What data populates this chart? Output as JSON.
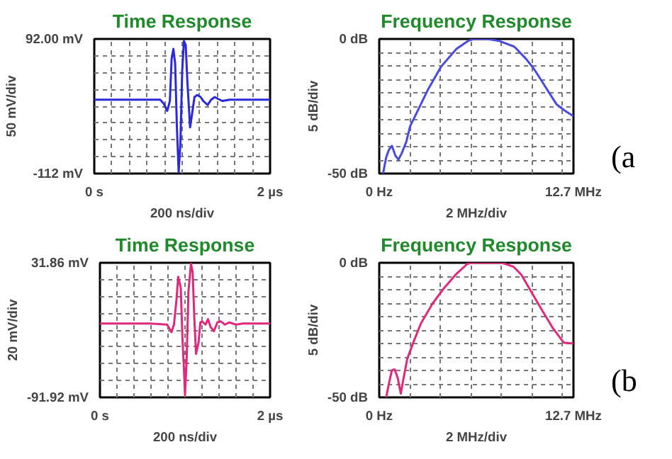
{
  "chart_data": [
    {
      "type": "line",
      "title": "Time Response",
      "xlabel": "200 ns/div",
      "ylabel": "50 mV/div",
      "xlim": [
        0,
        2
      ],
      "ylim": [
        -112,
        92
      ],
      "xticks": [
        {
          "value": 0,
          "label": "0 s"
        },
        {
          "value": 0.2,
          "label": null
        },
        {
          "value": 0.4,
          "label": null
        },
        {
          "value": 0.6,
          "label": null
        },
        {
          "value": 0.8,
          "label": null
        },
        {
          "value": 1.0,
          "label": null
        },
        {
          "value": 1.2,
          "label": null
        },
        {
          "value": 1.4,
          "label": null
        },
        {
          "value": 1.6,
          "label": null
        },
        {
          "value": 1.8,
          "label": null
        },
        {
          "value": 2,
          "label": "2 µs"
        }
      ],
      "yticks": [
        {
          "value": -112,
          "label": "-112 mV"
        },
        {
          "value": -86.5,
          "label": null
        },
        {
          "value": -61,
          "label": null
        },
        {
          "value": -35.5,
          "label": null
        },
        {
          "value": -10,
          "label": null
        },
        {
          "value": 15.5,
          "label": null
        },
        {
          "value": 41,
          "label": null
        },
        {
          "value": 66.5,
          "label": null
        },
        {
          "value": 92,
          "label": "92.00 mV"
        }
      ],
      "grid": true,
      "x": [
        0,
        0.61,
        0.75,
        0.79,
        0.83,
        0.86,
        0.88,
        0.9,
        0.92,
        0.94,
        0.96,
        0.98,
        1.0,
        1.02,
        1.04,
        1.06,
        1.09,
        1.11,
        1.14,
        1.17,
        1.21,
        1.24,
        1.29,
        1.33,
        1.37,
        1.41,
        1.46,
        1.54,
        2
      ],
      "series": [
        {
          "color": "#2a2ad8",
          "values": [
            0,
            0,
            0,
            -6,
            -17,
            -2,
            62,
            77,
            55,
            -42,
            -110,
            -66,
            43,
            89,
            83,
            25,
            -42,
            -24,
            4,
            7,
            4,
            -2,
            -8,
            0,
            4,
            1,
            -2,
            0,
            0
          ]
        }
      ]
    },
    {
      "type": "line",
      "title": "Frequency Response",
      "xlabel": "2 MHz/div",
      "ylabel": "5 dB/div",
      "xlim": [
        0,
        12.7
      ],
      "ylim": [
        -50,
        0
      ],
      "xticks": [
        {
          "value": 0,
          "label": "0 Hz"
        },
        {
          "value": 2,
          "label": null
        },
        {
          "value": 4,
          "label": null
        },
        {
          "value": 6,
          "label": null
        },
        {
          "value": 8,
          "label": null
        },
        {
          "value": 10,
          "label": null
        },
        {
          "value": 12,
          "label": null
        },
        {
          "value": 12.7,
          "label": "12.7 MHz"
        }
      ],
      "yticks": [
        {
          "value": -50,
          "label": "-50 dB"
        },
        {
          "value": -45,
          "label": null
        },
        {
          "value": -40,
          "label": null
        },
        {
          "value": -35,
          "label": null
        },
        {
          "value": -30,
          "label": null
        },
        {
          "value": -25,
          "label": null
        },
        {
          "value": -20,
          "label": null
        },
        {
          "value": -15,
          "label": null
        },
        {
          "value": -10,
          "label": null
        },
        {
          "value": -5,
          "label": null
        },
        {
          "value": 0,
          "label": "0 dB"
        }
      ],
      "grid": true,
      "annotations": [
        "(a"
      ],
      "x": [
        0.25,
        0.45,
        0.63,
        0.83,
        1.06,
        1.26,
        1.46,
        1.77,
        2.02,
        2.53,
        3.16,
        4.04,
        5.05,
        5.81,
        6.19,
        7.07,
        7.83,
        8.84,
        9.6,
        10.1,
        10.6,
        11.1,
        11.6,
        12.1,
        12.7
      ],
      "series": [
        {
          "color": "#4a4ae0",
          "values": [
            -50,
            -44.1,
            -41.2,
            -39.7,
            -43.4,
            -44.8,
            -42.6,
            -38.2,
            -32.4,
            -26.5,
            -19.1,
            -10.3,
            -3.7,
            -0.7,
            0,
            0,
            -0.7,
            -2.9,
            -7.4,
            -11,
            -15.4,
            -19.9,
            -24.3,
            -26.5,
            -28.7
          ]
        }
      ]
    },
    {
      "type": "line",
      "title": "Time Response",
      "xlabel": "200 ns/div",
      "ylabel": "20 mV/div",
      "xlim": [
        0,
        2
      ],
      "ylim": [
        -91.92,
        31.86
      ],
      "xticks": [
        {
          "value": 0,
          "label": "0 s"
        },
        {
          "value": 0.2,
          "label": null
        },
        {
          "value": 0.4,
          "label": null
        },
        {
          "value": 0.6,
          "label": null
        },
        {
          "value": 0.8,
          "label": null
        },
        {
          "value": 1.0,
          "label": null
        },
        {
          "value": 1.2,
          "label": null
        },
        {
          "value": 1.4,
          "label": null
        },
        {
          "value": 1.6,
          "label": null
        },
        {
          "value": 1.8,
          "label": null
        },
        {
          "value": 2,
          "label": "2 µs"
        }
      ],
      "yticks": [
        {
          "value": -91.92,
          "label": "-91.92 mV"
        },
        {
          "value": -76.45,
          "label": null
        },
        {
          "value": -60.97,
          "label": null
        },
        {
          "value": -45.5,
          "label": null
        },
        {
          "value": -30.03,
          "label": null
        },
        {
          "value": -14.56,
          "label": null
        },
        {
          "value": 0.91,
          "label": null
        },
        {
          "value": 16.39,
          "label": null
        },
        {
          "value": 31.86,
          "label": "31.86 mV"
        }
      ],
      "grid": true,
      "x": [
        0,
        0.59,
        0.79,
        0.84,
        0.87,
        0.9,
        0.92,
        0.95,
        0.97,
        0.99,
        1.0,
        1.02,
        1.04,
        1.07,
        1.09,
        1.11,
        1.13,
        1.16,
        1.18,
        1.2,
        1.24,
        1.27,
        1.3,
        1.34,
        1.38,
        1.42,
        1.47,
        1.52,
        1.6,
        1.68,
        2
      ],
      "series": [
        {
          "color": "#e0287c",
          "values": [
            -24,
            -24,
            -25,
            -32,
            -25,
            -2,
            19,
            9,
            -38,
            -70,
            -90,
            -55,
            5,
            31,
            23,
            -20,
            -52,
            -41,
            -23,
            -22,
            -25,
            -20,
            -27,
            -31,
            -23,
            -22,
            -25,
            -23,
            -25,
            -24,
            -24
          ]
        }
      ]
    },
    {
      "type": "line",
      "title": "Frequency Response",
      "xlabel": "2 MHz/div",
      "ylabel": "5 dB/div",
      "xlim": [
        0,
        12.7
      ],
      "ylim": [
        -50,
        0
      ],
      "xticks": [
        {
          "value": 0,
          "label": "0 Hz"
        },
        {
          "value": 2,
          "label": null
        },
        {
          "value": 4,
          "label": null
        },
        {
          "value": 6,
          "label": null
        },
        {
          "value": 8,
          "label": null
        },
        {
          "value": 10,
          "label": null
        },
        {
          "value": 12,
          "label": null
        },
        {
          "value": 12.7,
          "label": "12.7 MHz"
        }
      ],
      "yticks": [
        {
          "value": -50,
          "label": "-50 dB"
        },
        {
          "value": -45,
          "label": null
        },
        {
          "value": -40,
          "label": null
        },
        {
          "value": -35,
          "label": null
        },
        {
          "value": -30,
          "label": null
        },
        {
          "value": -25,
          "label": null
        },
        {
          "value": -20,
          "label": null
        },
        {
          "value": -15,
          "label": null
        },
        {
          "value": -10,
          "label": null
        },
        {
          "value": -5,
          "label": null
        },
        {
          "value": 0,
          "label": "0 dB"
        }
      ],
      "grid": true,
      "annotations": [
        "(b"
      ],
      "x": [
        0.45,
        0.66,
        0.83,
        1.01,
        1.21,
        1.41,
        1.59,
        1.84,
        2.22,
        2.73,
        3.48,
        4.24,
        5.0,
        5.76,
        6.01,
        8.03,
        8.79,
        9.29,
        9.8,
        10.55,
        11.31,
        12.07,
        12.7
      ],
      "series": [
        {
          "color": "#e0287c",
          "values": [
            -50,
            -44.2,
            -39.9,
            -39.6,
            -42.8,
            -48.6,
            -42.8,
            -35.5,
            -29.7,
            -22.5,
            -15.2,
            -9.4,
            -4.4,
            -0.4,
            0,
            0,
            -1.5,
            -4.4,
            -9.4,
            -16.7,
            -23.9,
            -29.7,
            -30
          ]
        }
      ]
    }
  ]
}
